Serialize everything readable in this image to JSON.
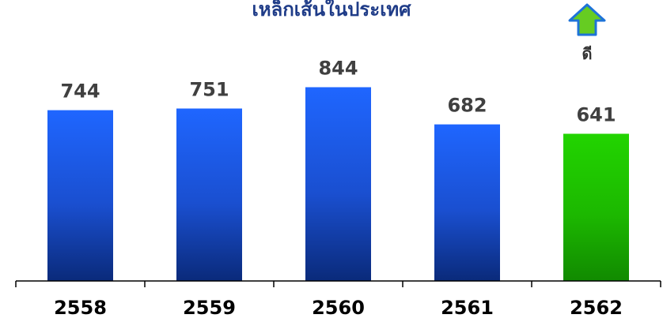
{
  "chart_data": {
    "type": "bar",
    "title": "เหล็กเส้นในประเทศ",
    "categories": [
      "2558",
      "2559",
      "2560",
      "2561",
      "2562"
    ],
    "values": [
      744,
      751,
      844,
      682,
      641
    ],
    "bar_colors": [
      "#1b5cff",
      "#1b5cff",
      "#1b5cff",
      "#1b5cff",
      "#22cc00"
    ],
    "xlabel": "",
    "ylabel": "",
    "ylim": [
      0,
      1000
    ],
    "grid": false
  },
  "indicator": {
    "icon": "arrow-up-icon",
    "label": "ดี",
    "color": "#66cc22"
  },
  "colors": {
    "label_text": "#404040",
    "axis": "#000000",
    "bar_dark_blue": "#0a2a7a",
    "bar_dark_green": "#118a00"
  }
}
